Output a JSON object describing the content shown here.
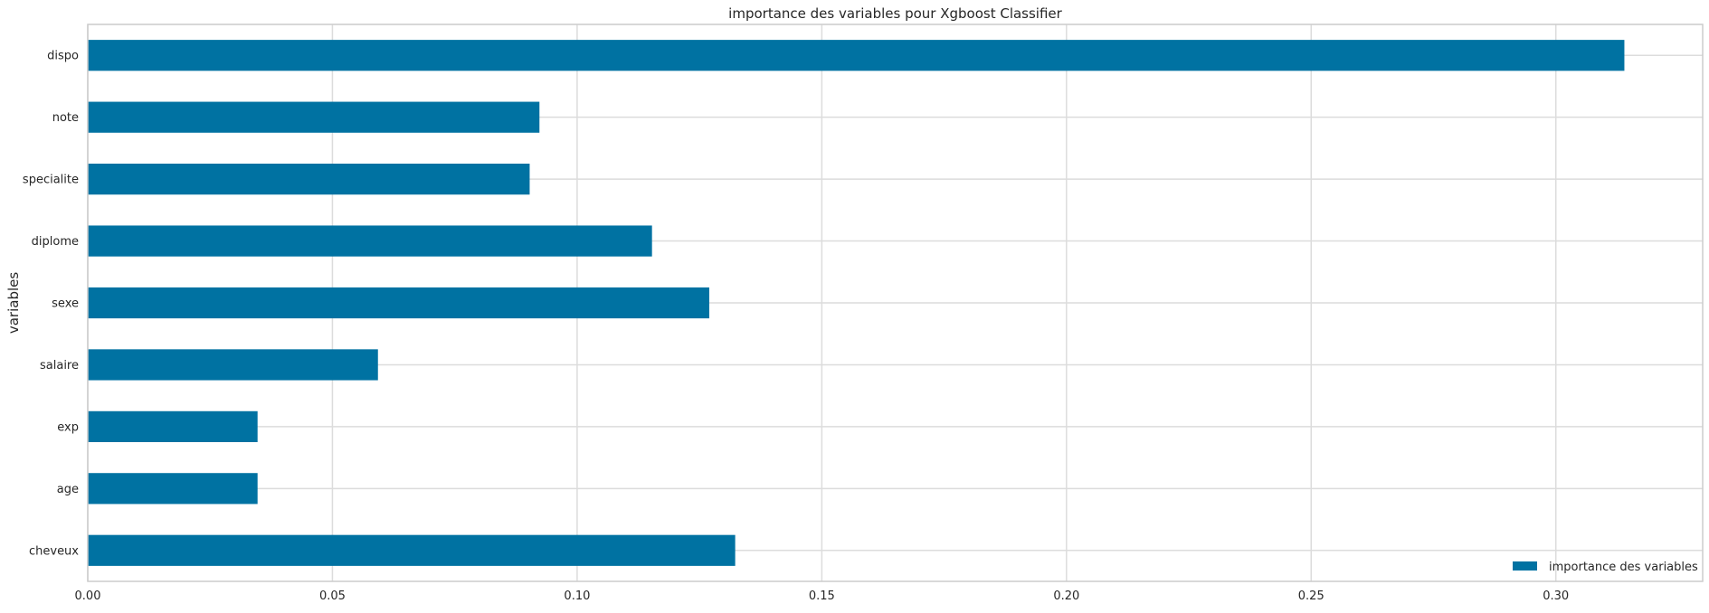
{
  "chart_data": {
    "type": "bar",
    "orientation": "horizontal",
    "title": "importance des variables pour Xgboost Classifier",
    "xlabel": "",
    "ylabel": "variables",
    "categories": [
      "cheveux",
      "age",
      "exp",
      "salaire",
      "sexe",
      "diplome",
      "specialite",
      "note",
      "dispo"
    ],
    "series": [
      {
        "name": "importance des variables",
        "values": [
          0.1323,
          0.0347,
          0.0347,
          0.0593,
          0.127,
          0.1153,
          0.0903,
          0.0923,
          0.314
        ]
      }
    ],
    "xlim": [
      0,
      0.33
    ],
    "xticks": [
      0.0,
      0.05,
      0.1,
      0.15,
      0.2,
      0.25,
      0.3
    ],
    "xtick_labels": [
      "0.00",
      "0.05",
      "0.10",
      "0.15",
      "0.20",
      "0.25",
      "0.30"
    ],
    "grid": true,
    "legend_position": "bottom-right",
    "bar_color": "#0072a2",
    "grid_color": "#dcdcdc",
    "frame_color": "#cccccc"
  }
}
